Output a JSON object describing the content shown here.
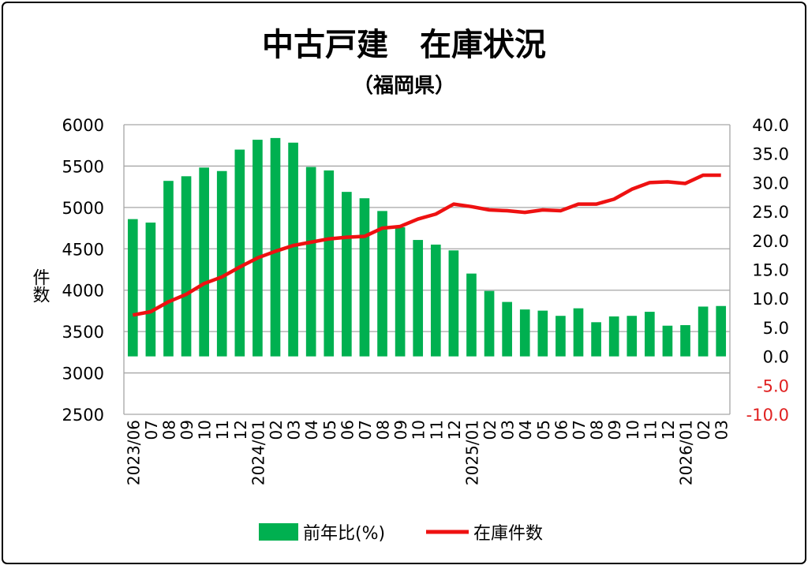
{
  "chart_data": {
    "type": "bar+line",
    "title": "中古戸建　在庫状況",
    "subtitle": "（福岡県）",
    "ylabel_left": "件数",
    "categories": [
      "2023/06",
      "07",
      "08",
      "09",
      "10",
      "11",
      "12",
      "2024/01",
      "02",
      "03",
      "04",
      "05",
      "06",
      "07",
      "08",
      "09",
      "10",
      "11",
      "12",
      "2025/01",
      "02",
      "03",
      "04",
      "05",
      "06",
      "07",
      "08",
      "09",
      "10",
      "11",
      "12",
      "2026/01",
      "02",
      "03"
    ],
    "y_left": {
      "lim": [
        2500,
        6000
      ],
      "ticks": [
        "2500",
        "3000",
        "3500",
        "4000",
        "4500",
        "5000",
        "5500",
        "6000"
      ],
      "step": 500
    },
    "y_right": {
      "lim": [
        -10,
        40
      ],
      "ticks": [
        "-10.0",
        "-5.0",
        "0.0",
        "5.0",
        "10.0",
        "15.0",
        "20.0",
        "25.0",
        "30.0",
        "35.0",
        "40.0"
      ],
      "step": 5
    },
    "grid": true,
    "legend_position": "bottom",
    "series": [
      {
        "name": "前年比(%)",
        "type": "bar",
        "axis": "right",
        "color": "#00b050",
        "values": [
          23.7,
          23.1,
          30.3,
          31.1,
          32.6,
          32.0,
          35.7,
          37.4,
          37.7,
          36.9,
          32.7,
          32.1,
          28.4,
          27.3,
          25.1,
          22.3,
          20.1,
          19.3,
          18.3,
          14.3,
          11.3,
          9.4,
          8.1,
          7.9,
          7.0,
          8.3,
          5.9,
          6.9,
          7.0,
          7.7,
          5.3,
          5.4,
          8.6,
          8.7
        ]
      },
      {
        "name": "在庫件数",
        "type": "line",
        "axis": "left",
        "color": "#ee1111",
        "values": [
          3700,
          3740,
          3860,
          3950,
          4080,
          4160,
          4280,
          4390,
          4470,
          4540,
          4580,
          4620,
          4640,
          4650,
          4750,
          4770,
          4860,
          4920,
          5040,
          5010,
          4970,
          4960,
          4940,
          4970,
          4960,
          5040,
          5040,
          5100,
          5220,
          5300,
          5310,
          5290,
          5390,
          5390
        ]
      }
    ],
    "negative_tick_color": "#e02020"
  }
}
